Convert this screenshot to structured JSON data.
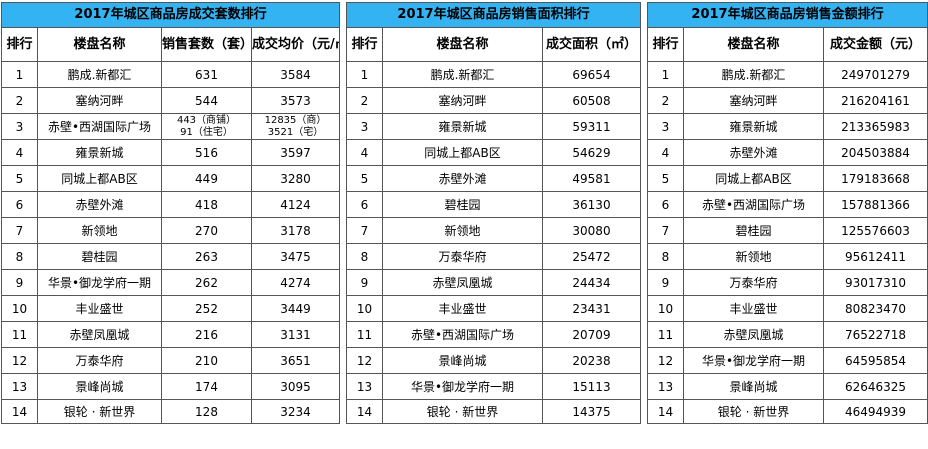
{
  "table1": {
    "title": "2017年城区商品房成交套数排行",
    "headers": [
      "排行",
      "楼盘名称",
      [
        "销售套数",
        "（套）"
      ],
      [
        "成交均价",
        "（元/㎡）"
      ]
    ],
    "rows": [
      [
        "1",
        "鹏成.新都汇",
        "631",
        "3584"
      ],
      [
        "2",
        "塞纳河畔",
        "544",
        "3573"
      ],
      [
        "3",
        "赤壁•西湖国际广场",
        [
          "443（商铺）",
          "91（住宅）"
        ],
        [
          "12835（商）",
          "3521（宅）"
        ]
      ],
      [
        "4",
        "雍景新城",
        "516",
        "3597"
      ],
      [
        "5",
        "同城上都AB区",
        "449",
        "3280"
      ],
      [
        "6",
        "赤壁外滩",
        "418",
        "4124"
      ],
      [
        "7",
        "新领地",
        "270",
        "3178"
      ],
      [
        "8",
        "碧桂园",
        "263",
        "3475"
      ],
      [
        "9",
        "华景•御龙学府一期",
        "262",
        "4274"
      ],
      [
        "10",
        "丰业盛世",
        "252",
        "3449"
      ],
      [
        "11",
        "赤壁凤凰城",
        "216",
        "3131"
      ],
      [
        "12",
        "万泰华府",
        "210",
        "3651"
      ],
      [
        "13",
        "景峰尚城",
        "174",
        "3095"
      ],
      [
        "14",
        "银轮 · 新世界",
        "128",
        "3234"
      ]
    ]
  },
  "table2": {
    "title": "2017年城区商品房销售面积排行",
    "headers": [
      "排行",
      "楼盘名称",
      [
        "成交面积",
        "（㎡）"
      ]
    ],
    "rows": [
      [
        "1",
        "鹏成.新都汇",
        "69654"
      ],
      [
        "2",
        "塞纳河畔",
        "60508"
      ],
      [
        "3",
        "雍景新城",
        "59311"
      ],
      [
        "4",
        "同城上都AB区",
        "54629"
      ],
      [
        "5",
        "赤壁外滩",
        "49581"
      ],
      [
        "6",
        "碧桂园",
        "36130"
      ],
      [
        "7",
        "新领地",
        "30080"
      ],
      [
        "8",
        "万泰华府",
        "25472"
      ],
      [
        "9",
        "赤壁凤凰城",
        "24434"
      ],
      [
        "10",
        "丰业盛世",
        "23431"
      ],
      [
        "11",
        "赤壁•西湖国际广场",
        "20709"
      ],
      [
        "12",
        "景峰尚城",
        "20238"
      ],
      [
        "13",
        "华景•御龙学府一期",
        "15113"
      ],
      [
        "14",
        "银轮 · 新世界",
        "14375"
      ]
    ]
  },
  "table3": {
    "title": "2017年城区商品房销售金额排行",
    "headers": [
      "排行",
      "楼盘名称",
      [
        "成交金额",
        "（元）"
      ]
    ],
    "rows": [
      [
        "1",
        "鹏成.新都汇",
        "249701279"
      ],
      [
        "2",
        "塞纳河畔",
        "216204161"
      ],
      [
        "3",
        "雍景新城",
        "213365983"
      ],
      [
        "4",
        "赤壁外滩",
        "204503884"
      ],
      [
        "5",
        "同城上都AB区",
        "179183668"
      ],
      [
        "6",
        "赤壁•西湖国际广场",
        "157881366"
      ],
      [
        "7",
        "碧桂园",
        "125576603"
      ],
      [
        "8",
        "新领地",
        "95612411"
      ],
      [
        "9",
        "万泰华府",
        "93017310"
      ],
      [
        "10",
        "丰业盛世",
        "80823470"
      ],
      [
        "11",
        "赤壁凤凰城",
        "76522718"
      ],
      [
        "12",
        "华景•御龙学府一期",
        "64595854"
      ],
      [
        "13",
        "景峰尚城",
        "62646325"
      ],
      [
        "14",
        "银轮 · 新世界",
        "46494939"
      ]
    ]
  }
}
